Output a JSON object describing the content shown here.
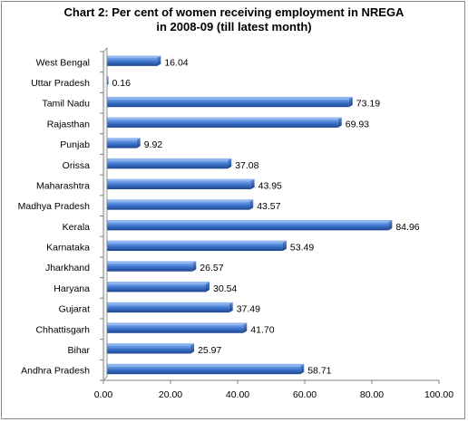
{
  "chart_data": {
    "type": "bar",
    "orientation": "horizontal",
    "title": [
      "Chart 2: Per cent of women receiving employment in NREGA",
      "in 2008-09 (till latest month)"
    ],
    "categories": [
      "West Bengal",
      "Uttar Pradesh",
      "Tamil Nadu",
      "Rajasthan",
      "Punjab",
      "Orissa",
      "Maharashtra",
      "Madhya Pradesh",
      "Kerala",
      "Karnataka",
      "Jharkhand",
      "Haryana",
      "Gujarat",
      "Chhattisgarh",
      "Bihar",
      "Andhra Pradesh"
    ],
    "values": [
      16.04,
      0.16,
      73.19,
      69.93,
      9.92,
      37.08,
      43.95,
      43.57,
      84.96,
      53.49,
      26.57,
      30.54,
      37.49,
      41.7,
      25.97,
      58.71
    ],
    "value_labels": [
      "16.04",
      "0.16",
      "73.19",
      "69.93",
      "9.92",
      "37.08",
      "43.95",
      "43.57",
      "84.96",
      "53.49",
      "26.57",
      "30.54",
      "37.49",
      "41.70",
      "25.97",
      "58.71"
    ],
    "xlim": [
      0,
      100
    ],
    "x_ticks": [
      0,
      20,
      40,
      60,
      80,
      100
    ],
    "x_tick_labels": [
      "0.00",
      "20.00",
      "40.00",
      "60.00",
      "80.00",
      "100.00"
    ],
    "xlabel": "",
    "ylabel": "",
    "grid": false,
    "legend": "none",
    "colors": {
      "bar_light": "#6f9be0",
      "bar_mid": "#3a6fc6",
      "bar_dark": "#1f4a94",
      "axis": "#808080"
    }
  }
}
